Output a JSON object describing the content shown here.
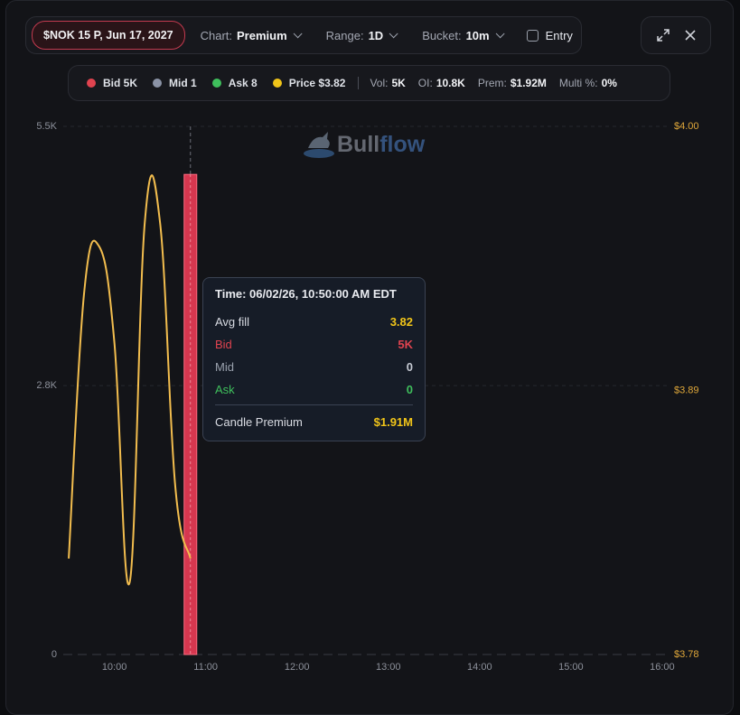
{
  "toolbar": {
    "ticker": "$NOK 15 P, Jun 17, 2027",
    "chart_label": "Chart:",
    "chart_value": "Premium",
    "range_label": "Range:",
    "range_value": "1D",
    "bucket_label": "Bucket:",
    "bucket_value": "10m",
    "entry": "Entry"
  },
  "stats": {
    "legend": [
      {
        "label": "Bid 5K",
        "color": "#e0434f"
      },
      {
        "label": "Mid 1",
        "color": "#8b93a6"
      },
      {
        "label": "Ask 8",
        "color": "#3fbf5c"
      },
      {
        "label": "Price $3.82",
        "color": "#f0c419"
      }
    ],
    "items": [
      {
        "label": "Vol:",
        "value": "5K"
      },
      {
        "label": "OI:",
        "value": "10.8K"
      },
      {
        "label": "Prem:",
        "value": "$1.92M"
      },
      {
        "label": "Multi %:",
        "value": "0%"
      }
    ]
  },
  "logo": {
    "part1": "Bull",
    "part2": "flow"
  },
  "tooltip": {
    "title": "Time: 06/02/26, 10:50:00 AM EDT",
    "rows": [
      {
        "label": "Avg fill",
        "value": "3.82"
      },
      {
        "label": "Bid",
        "value": "5K"
      },
      {
        "label": "Mid",
        "value": "0"
      },
      {
        "label": "Ask",
        "value": "0"
      }
    ],
    "footer": {
      "label": "Candle Premium",
      "value": "$1.91M"
    }
  },
  "chart_data": {
    "type": "combo",
    "xlim": [
      9.44,
      16.08
    ],
    "xticks": [
      {
        "value": 10,
        "label": "10:00"
      },
      {
        "value": 11,
        "label": "11:00"
      },
      {
        "value": 12,
        "label": "12:00"
      },
      {
        "value": 13,
        "label": "13:00"
      },
      {
        "value": 14,
        "label": "14:00"
      },
      {
        "value": 15,
        "label": "15:00"
      },
      {
        "value": 16,
        "label": "16:00"
      }
    ],
    "ylim": [
      0,
      5500
    ],
    "yticks": [
      0,
      {
        "value": 2800,
        "label": "2.8K"
      },
      {
        "value": 5500,
        "label": "5.5K"
      }
    ],
    "y2lim": [
      3.78,
      4.0
    ],
    "y2ticks": [
      {
        "value": 3.78,
        "label": "$3.78"
      },
      {
        "value": 3.89,
        "label": "$3.89"
      },
      {
        "value": 4.0,
        "label": "$4.00"
      }
    ],
    "grid": true,
    "series": [
      {
        "name": "Bid",
        "type": "bar",
        "color": "#d6374f",
        "x": [
          10.833
        ],
        "values": [
          5000
        ]
      },
      {
        "name": "Price",
        "type": "line",
        "axis": "y2",
        "color": "#f2bd4e",
        "x": [
          9.5,
          9.667,
          9.833,
          10,
          10.167,
          10.333,
          10.5,
          10.667,
          10.833
        ],
        "values": [
          3.82,
          3.93,
          3.95,
          3.91,
          3.81,
          3.96,
          3.96,
          3.85,
          3.82
        ]
      }
    ]
  }
}
